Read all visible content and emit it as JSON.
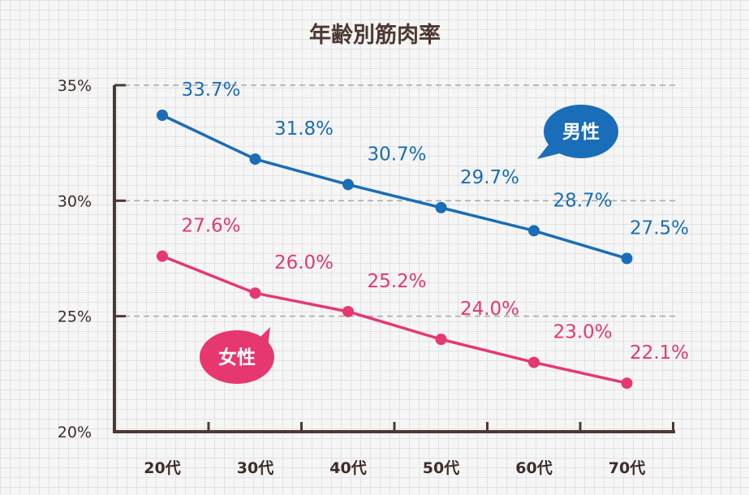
{
  "chart_data": {
    "type": "line",
    "title": "年齢別筋肉率",
    "categories": [
      "20代",
      "30代",
      "40代",
      "50代",
      "60代",
      "70代"
    ],
    "yticks": [
      "20%",
      "25%",
      "30%",
      "35%"
    ],
    "ylim": [
      20,
      35
    ],
    "grid": "horizontal dashed",
    "series": [
      {
        "name": "男性",
        "color": "#1a6db8",
        "values": [
          33.7,
          31.8,
          30.7,
          29.7,
          28.7,
          27.5
        ],
        "labels": [
          "33.7%",
          "31.8%",
          "30.7%",
          "29.7%",
          "28.7%",
          "27.5%"
        ]
      },
      {
        "name": "女性",
        "color": "#e6386f",
        "values": [
          27.6,
          26.0,
          25.2,
          24.0,
          23.0,
          22.1
        ],
        "labels": [
          "27.6%",
          "26.0%",
          "25.2%",
          "24.0%",
          "23.0%",
          "22.1%"
        ]
      }
    ]
  }
}
